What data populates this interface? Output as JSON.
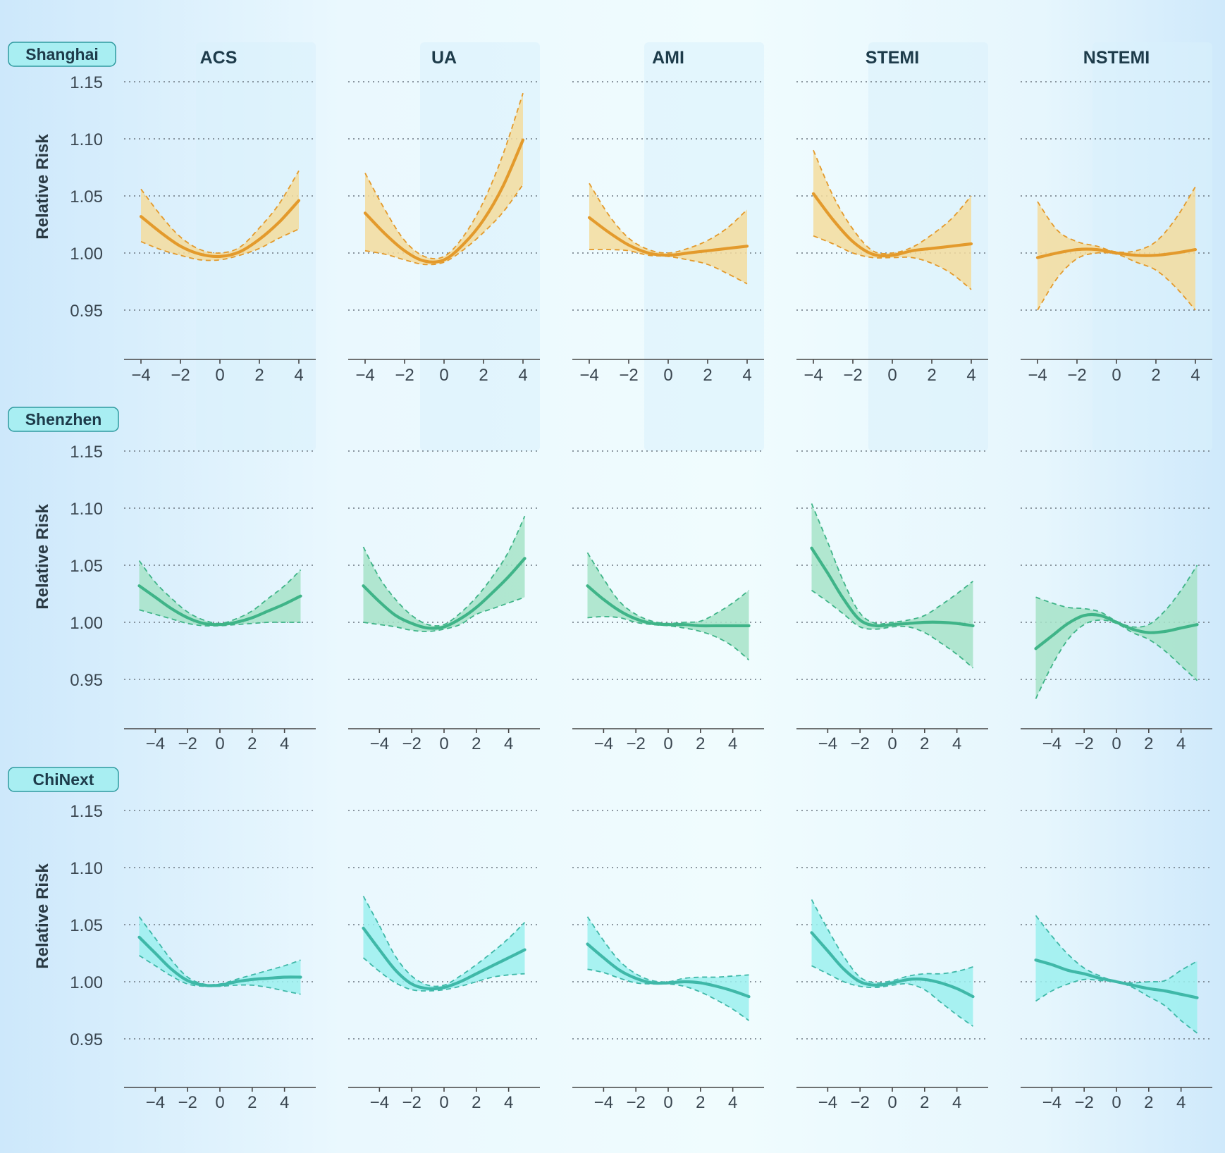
{
  "figure": {
    "columns": [
      "ACS",
      "UA",
      "AMI",
      "STEMI",
      "NSTEMI"
    ],
    "rows": [
      {
        "label": "Shanghai",
        "ylabel": "Relative Risk"
      },
      {
        "label": "Shenzhen",
        "ylabel": "Relative Risk"
      },
      {
        "label": "ChiNext",
        "ylabel": "Relative Risk"
      }
    ],
    "y_ticks": [
      "1.15",
      "1.10",
      "1.05",
      "1.00",
      "0.95"
    ],
    "x_ticks": [
      "−4",
      "−2",
      "0",
      "2",
      "4"
    ],
    "colors": {
      "Shanghai": {
        "line": "#e39a2c",
        "fill": "#f3dc9e"
      },
      "Shenzhen": {
        "line": "#3fb488",
        "fill": "#a6e3c8"
      },
      "ChiNext": {
        "line": "#3fb8a8",
        "fill": "#9bf0ee"
      },
      "background_left": "#cfe9fb",
      "background_mid": "#effbfe",
      "label_bg": "#a8eef2"
    }
  },
  "chart_data": {
    "type": "line",
    "description_grid": "3 rows (markets) x 5 columns (outcomes); solid line = relative risk, dashed lines with shaded band = 95% CI",
    "ylim": [
      0.91,
      1.15
    ],
    "panels": {
      "Shanghai": {
        "xlim": [
          -4.5,
          4.5
        ],
        "ACS": {
          "x": [
            -4,
            -3,
            -2,
            -1,
            0,
            1,
            2,
            3,
            4
          ],
          "rr": [
            1.032,
            1.018,
            1.006,
            0.999,
            0.997,
            1.001,
            1.012,
            1.027,
            1.046
          ],
          "lower": [
            1.01,
            1.003,
            0.998,
            0.994,
            0.994,
            0.998,
            1.004,
            1.013,
            1.021
          ],
          "upper": [
            1.056,
            1.033,
            1.014,
            1.003,
            1.0,
            1.005,
            1.022,
            1.043,
            1.072
          ]
        },
        "UA": {
          "x": [
            -4,
            -3,
            -2,
            -1,
            0,
            1,
            2,
            3,
            4
          ],
          "rr": [
            1.035,
            1.017,
            1.002,
            0.993,
            0.994,
            1.008,
            1.029,
            1.059,
            1.099
          ],
          "lower": [
            1.002,
            0.999,
            0.994,
            0.99,
            0.992,
            1.003,
            1.018,
            1.036,
            1.06
          ],
          "upper": [
            1.07,
            1.038,
            1.011,
            0.997,
            0.997,
            1.015,
            1.045,
            1.087,
            1.14
          ]
        },
        "AMI": {
          "x": [
            -4,
            -3,
            -2,
            -1,
            0,
            1,
            2,
            3,
            4
          ],
          "rr": [
            1.031,
            1.018,
            1.007,
            1.0,
            0.998,
            1.0,
            1.002,
            1.004,
            1.006
          ],
          "lower": [
            1.003,
            1.003,
            1.002,
            0.998,
            0.997,
            0.994,
            0.99,
            0.982,
            0.973
          ],
          "upper": [
            1.061,
            1.033,
            1.013,
            1.003,
            1.0,
            1.004,
            1.011,
            1.022,
            1.038
          ]
        },
        "STEMI": {
          "x": [
            -4,
            -3,
            -2,
            -1,
            0,
            1,
            2,
            3,
            4
          ],
          "rr": [
            1.052,
            1.029,
            1.01,
            0.999,
            0.998,
            1.002,
            1.004,
            1.006,
            1.008
          ],
          "lower": [
            1.015,
            1.008,
            1.0,
            0.996,
            0.996,
            0.996,
            0.991,
            0.982,
            0.968
          ],
          "upper": [
            1.09,
            1.05,
            1.021,
            1.002,
            1.0,
            1.005,
            1.016,
            1.03,
            1.05
          ]
        },
        "NSTEMI": {
          "x": [
            -4,
            -3,
            -2,
            -1,
            0,
            1,
            2,
            3,
            4
          ],
          "rr": [
            0.996,
            1.0,
            1.003,
            1.003,
            1.0,
            0.998,
            0.998,
            1.0,
            1.003
          ],
          "lower": [
            0.95,
            0.978,
            0.995,
            1.0,
            0.999,
            0.992,
            0.985,
            0.97,
            0.95
          ],
          "upper": [
            1.045,
            1.02,
            1.01,
            1.006,
            1.001,
            1.002,
            1.01,
            1.03,
            1.058
          ]
        }
      },
      "Shenzhen": {
        "xlim": [
          -5.5,
          5.5
        ],
        "ACS": {
          "x": [
            -5,
            -4,
            -3,
            -2,
            -1,
            0,
            1,
            2,
            3,
            4,
            5
          ],
          "rr": [
            1.032,
            1.022,
            1.012,
            1.004,
            0.999,
            0.998,
            1.0,
            1.004,
            1.01,
            1.016,
            1.023
          ],
          "lower": [
            1.011,
            1.007,
            1.003,
            0.999,
            0.997,
            0.997,
            0.998,
            0.999,
            1.0,
            1.0,
            1.0
          ],
          "upper": [
            1.054,
            1.035,
            1.021,
            1.009,
            1.002,
            0.999,
            1.003,
            1.01,
            1.021,
            1.032,
            1.046
          ]
        },
        "UA": {
          "x": [
            -5,
            -4,
            -3,
            -2,
            -1,
            0,
            1,
            2,
            3,
            4,
            5
          ],
          "rr": [
            1.032,
            1.018,
            1.006,
            0.999,
            0.995,
            0.996,
            1.003,
            1.013,
            1.026,
            1.04,
            1.056
          ],
          "lower": [
            1.0,
            0.998,
            0.996,
            0.993,
            0.992,
            0.994,
            0.998,
            1.007,
            1.012,
            1.017,
            1.022
          ],
          "upper": [
            1.066,
            1.039,
            1.02,
            1.006,
            0.998,
            0.998,
            1.008,
            1.022,
            1.04,
            1.062,
            1.093
          ]
        },
        "AMI": {
          "x": [
            -5,
            -4,
            -3,
            -2,
            -1,
            0,
            1,
            2,
            3,
            4,
            5
          ],
          "rr": [
            1.032,
            1.02,
            1.01,
            1.003,
            0.999,
            0.998,
            0.998,
            0.997,
            0.997,
            0.997,
            0.997
          ],
          "lower": [
            1.004,
            1.005,
            1.004,
            1.0,
            0.998,
            0.997,
            0.995,
            0.992,
            0.987,
            0.979,
            0.967
          ],
          "upper": [
            1.061,
            1.038,
            1.018,
            1.007,
            1.001,
            0.999,
            1.0,
            1.001,
            1.008,
            1.017,
            1.028
          ]
        },
        "STEMI": {
          "x": [
            -5,
            -4,
            -3,
            -2,
            -1,
            0,
            1,
            2,
            3,
            4,
            5
          ],
          "rr": [
            1.065,
            1.043,
            1.02,
            1.002,
            0.997,
            0.998,
            0.999,
            1.0,
            1.0,
            0.999,
            0.997
          ],
          "lower": [
            1.028,
            1.018,
            1.007,
            0.996,
            0.994,
            0.996,
            0.996,
            0.991,
            0.982,
            0.972,
            0.96
          ],
          "upper": [
            1.104,
            1.07,
            1.035,
            1.008,
            0.999,
            1.0,
            1.002,
            1.006,
            1.015,
            1.025,
            1.036
          ]
        },
        "NSTEMI": {
          "x": [
            -5,
            -4,
            -3,
            -2,
            -1,
            0,
            1,
            2,
            3,
            4,
            5
          ],
          "rr": [
            0.977,
            0.988,
            0.999,
            1.006,
            1.006,
            1.0,
            0.994,
            0.991,
            0.992,
            0.995,
            0.998
          ],
          "lower": [
            0.933,
            0.962,
            0.985,
            0.998,
            1.002,
            0.999,
            0.991,
            0.985,
            0.975,
            0.962,
            0.949
          ],
          "upper": [
            1.022,
            1.017,
            1.013,
            1.012,
            1.009,
            1.001,
            0.996,
            0.998,
            1.01,
            1.028,
            1.05
          ]
        }
      },
      "ChiNext": {
        "xlim": [
          -5.5,
          5.5
        ],
        "ACS": {
          "x": [
            -5,
            -4,
            -3,
            -2,
            -1,
            0,
            1,
            2,
            3,
            4,
            5
          ],
          "rr": [
            1.039,
            1.025,
            1.011,
            1.001,
            0.997,
            0.997,
            1.0,
            1.002,
            1.003,
            1.004,
            1.004
          ],
          "lower": [
            1.023,
            1.014,
            1.005,
            0.998,
            0.996,
            0.996,
            0.997,
            0.997,
            0.995,
            0.992,
            0.989
          ],
          "upper": [
            1.057,
            1.038,
            1.019,
            1.004,
            0.998,
            0.998,
            1.002,
            1.006,
            1.01,
            1.014,
            1.019
          ]
        },
        "UA": {
          "x": [
            -5,
            -4,
            -3,
            -2,
            -1,
            0,
            1,
            2,
            3,
            4,
            5
          ],
          "rr": [
            1.047,
            1.028,
            1.01,
            0.998,
            0.994,
            0.995,
            1.0,
            1.007,
            1.014,
            1.021,
            1.028
          ],
          "lower": [
            1.021,
            1.009,
            0.999,
            0.993,
            0.992,
            0.993,
            0.996,
            1.0,
            1.004,
            1.006,
            1.007
          ],
          "upper": [
            1.075,
            1.049,
            1.022,
            1.005,
            0.997,
            0.997,
            1.005,
            1.015,
            1.026,
            1.038,
            1.052
          ]
        },
        "AMI": {
          "x": [
            -5,
            -4,
            -3,
            -2,
            -1,
            0,
            1,
            2,
            3,
            4,
            5
          ],
          "rr": [
            1.033,
            1.021,
            1.01,
            1.003,
            0.999,
            0.999,
            1.0,
            0.999,
            0.996,
            0.992,
            0.987
          ],
          "lower": [
            1.011,
            1.008,
            1.003,
            0.999,
            0.998,
            0.998,
            0.996,
            0.991,
            0.984,
            0.976,
            0.966
          ],
          "upper": [
            1.057,
            1.036,
            1.018,
            1.007,
            1.001,
            1.0,
            1.003,
            1.004,
            1.004,
            1.005,
            1.006
          ]
        },
        "STEMI": {
          "x": [
            -5,
            -4,
            -3,
            -2,
            -1,
            0,
            1,
            2,
            3,
            4,
            5
          ],
          "rr": [
            1.043,
            1.027,
            1.011,
            1.0,
            0.997,
            0.999,
            1.002,
            1.002,
            0.999,
            0.994,
            0.987
          ],
          "lower": [
            1.014,
            1.007,
            1.0,
            0.996,
            0.995,
            0.997,
            0.998,
            0.993,
            0.982,
            0.971,
            0.961
          ],
          "upper": [
            1.072,
            1.046,
            1.022,
            1.004,
            0.999,
            1.001,
            1.005,
            1.007,
            1.007,
            1.009,
            1.013
          ]
        },
        "NSTEMI": {
          "x": [
            -5,
            -4,
            -3,
            -2,
            -1,
            0,
            1,
            2,
            3,
            4,
            5
          ],
          "rr": [
            1.019,
            1.015,
            1.01,
            1.007,
            1.003,
            1.0,
            0.997,
            0.994,
            0.992,
            0.989,
            0.986
          ],
          "lower": [
            0.983,
            0.992,
            0.998,
            1.002,
            1.001,
            1.0,
            0.995,
            0.987,
            0.979,
            0.966,
            0.955
          ],
          "upper": [
            1.058,
            1.04,
            1.024,
            1.012,
            1.005,
            1.0,
            0.999,
            1.0,
            1.001,
            1.01,
            1.018
          ]
        }
      }
    }
  }
}
